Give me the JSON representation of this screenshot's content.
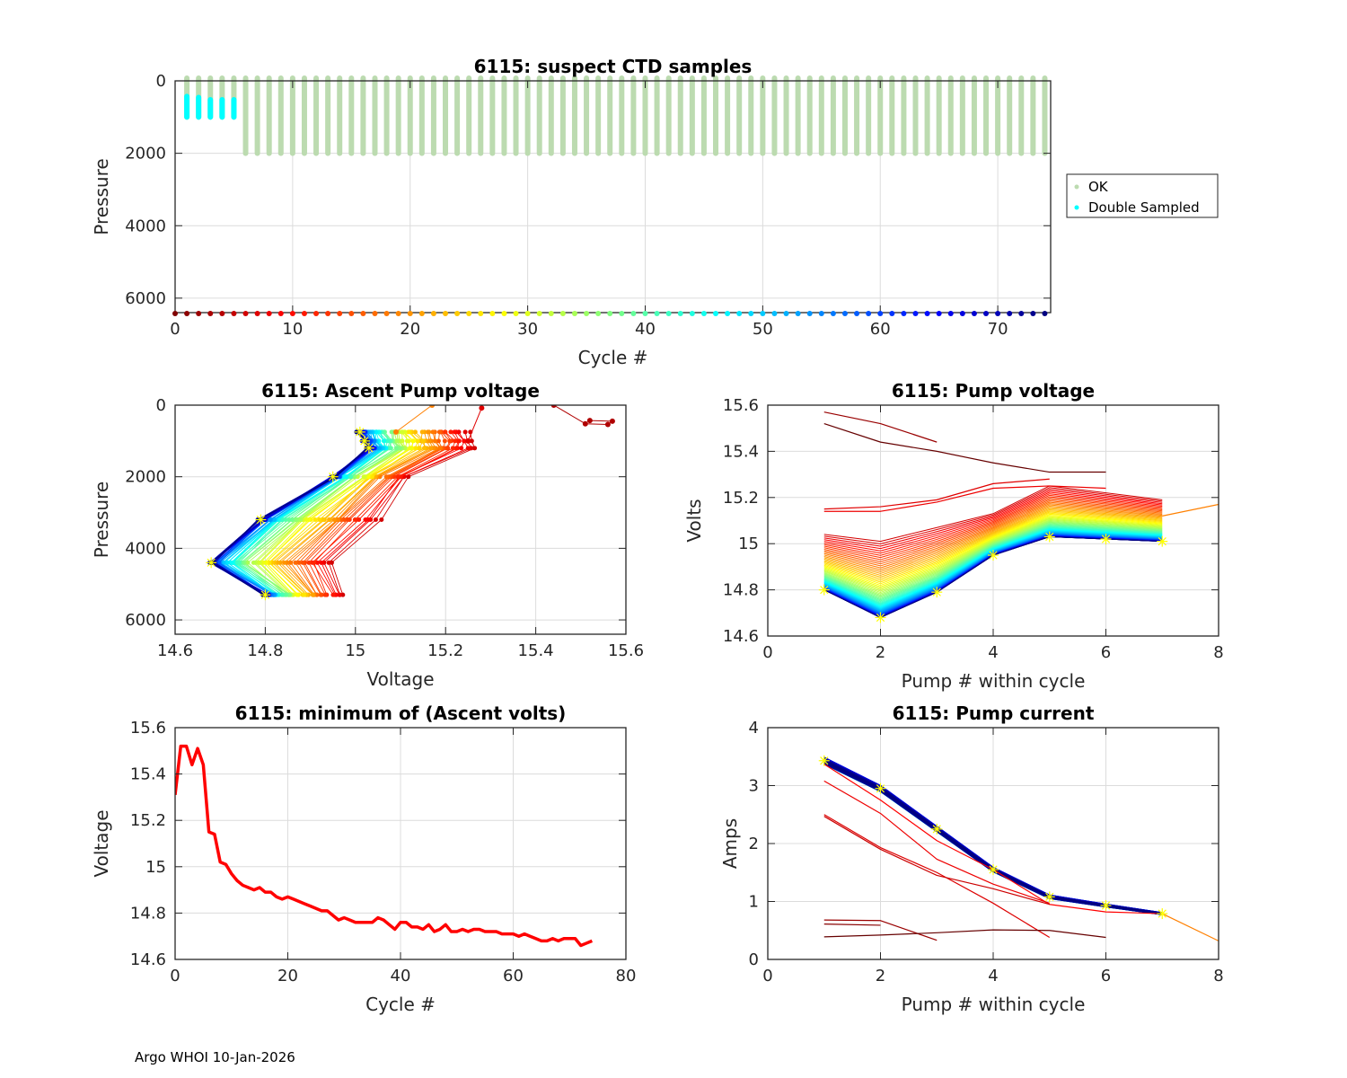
{
  "figure": {
    "footer": "Argo WHOI 10-Jan-2026",
    "float_id": "6115"
  },
  "chart_data": [
    {
      "id": "suspect-ctd",
      "type": "scatter",
      "title": "6115: suspect CTD samples",
      "xlabel": "Cycle #",
      "ylabel": "Pressure",
      "xlim": [
        0,
        74.5
      ],
      "ylim": [
        0,
        6400
      ],
      "y_reversed": true,
      "xticks": [
        0,
        10,
        20,
        30,
        40,
        50,
        60,
        70
      ],
      "yticks": [
        0,
        2000,
        4000,
        6000
      ],
      "grid": true,
      "legend": {
        "placement": "outside-right",
        "entries": [
          {
            "label": "OK",
            "color": "#bcdbb0"
          },
          {
            "label": "Double Sampled",
            "color": "#00ffff"
          }
        ]
      },
      "ok_profiles": {
        "cycles_shallow": [
          1,
          2,
          3,
          4,
          5
        ],
        "shallow_pressure_range": [
          0,
          1000
        ],
        "cycles_deep_first": 6,
        "cycles_deep_last": 74,
        "deep_pressure_range": [
          0,
          2000
        ]
      },
      "double_sampled": [
        {
          "cycle": 1,
          "pressure_range": [
            430,
            1000
          ]
        },
        {
          "cycle": 2,
          "pressure_range": [
            460,
            1000
          ]
        },
        {
          "cycle": 3,
          "pressure_range": [
            520,
            1000
          ]
        },
        {
          "cycle": 4,
          "pressure_range": [
            520,
            1000
          ]
        },
        {
          "cycle": 5,
          "pressure_range": [
            520,
            1000
          ]
        }
      ],
      "cycle_markers": {
        "first": 0,
        "last": 74,
        "pressure": 6350,
        "colormap": "jet"
      }
    },
    {
      "id": "ascent-pump-voltage",
      "type": "line",
      "title": "6115: Ascent Pump voltage",
      "xlabel": "Voltage",
      "ylabel": "Pressure",
      "xlim": [
        14.6,
        15.6
      ],
      "ylim": [
        0,
        6400
      ],
      "y_reversed": true,
      "xticks": [
        14.6,
        14.8,
        15,
        15.2,
        15.4,
        15.6
      ],
      "yticks": [
        0,
        2000,
        4000,
        6000
      ],
      "grid": true,
      "colormap": "jet by cycle",
      "pump_pressures": [
        750,
        1000,
        1200,
        2000,
        3200,
        4400,
        5300
      ],
      "early_cycle_volts": [
        15.25,
        15.26,
        15.26,
        15.12,
        15.05,
        14.95,
        14.97
      ],
      "late_cycle_volts": [
        15.01,
        15.02,
        15.03,
        14.95,
        14.79,
        14.68,
        14.8
      ],
      "outliers": [
        {
          "points": [
            [
              15.17,
              0
            ],
            [
              15.09,
              750
            ]
          ],
          "color": "#ff8000"
        },
        {
          "points": [
            [
              15.28,
              80
            ],
            [
              15.25,
              1000
            ]
          ],
          "color": "#e00000"
        },
        {
          "points": [
            [
              15.44,
              0
            ],
            [
              15.51,
              520
            ],
            [
              15.56,
              540
            ],
            [
              15.57,
              450
            ],
            [
              15.52,
              430
            ]
          ],
          "color": "#b00000"
        }
      ],
      "highlight_marker": "yellow asterisk on last cycle"
    },
    {
      "id": "pump-voltage",
      "type": "line",
      "title": "6115: Pump voltage",
      "xlabel": "Pump # within cycle",
      "ylabel": "Volts",
      "xlim": [
        0,
        8
      ],
      "ylim": [
        14.6,
        15.6
      ],
      "xticks": [
        0,
        2,
        4,
        6,
        8
      ],
      "yticks": [
        14.6,
        14.8,
        15,
        15.2,
        15.4,
        15.6
      ],
      "grid": true,
      "colormap": "jet by cycle",
      "pump_numbers": [
        1,
        2,
        3,
        4,
        5,
        6,
        7
      ],
      "early_cycle_volts": [
        15.04,
        15.01,
        15.07,
        15.13,
        15.25,
        15.22,
        15.19
      ],
      "late_cycle_volts": [
        14.8,
        14.68,
        14.79,
        14.95,
        15.03,
        15.02,
        15.01
      ],
      "outliers": [
        {
          "points": [
            [
              1,
              15.57
            ],
            [
              2,
              15.52
            ],
            [
              3,
              15.44
            ]
          ],
          "color": "#990000"
        },
        {
          "points": [
            [
              1,
              15.52
            ],
            [
              2,
              15.44
            ],
            [
              3,
              15.4
            ],
            [
              4,
              15.35
            ],
            [
              5,
              15.31
            ],
            [
              6,
              15.31
            ]
          ],
          "color": "#660000"
        },
        {
          "points": [
            [
              1,
              15.15
            ],
            [
              2,
              15.16
            ],
            [
              3,
              15.19
            ],
            [
              4,
              15.26
            ],
            [
              5,
              15.28
            ]
          ],
          "color": "#e00000"
        },
        {
          "points": [
            [
              1,
              15.14
            ],
            [
              2,
              15.14
            ],
            [
              3,
              15.18
            ],
            [
              4,
              15.24
            ],
            [
              5,
              15.25
            ],
            [
              6,
              15.24
            ]
          ],
          "color": "#ee0000"
        },
        {
          "points": [
            [
              7,
              15.12
            ],
            [
              8,
              15.17
            ]
          ],
          "color": "#ff8000"
        }
      ]
    },
    {
      "id": "min-ascent-volts",
      "type": "line",
      "title": "6115: minimum of (Ascent volts)",
      "xlabel": "Cycle #",
      "ylabel": "Voltage",
      "xlim": [
        0,
        80
      ],
      "ylim": [
        14.6,
        15.6
      ],
      "xticks": [
        0,
        20,
        40,
        60,
        80
      ],
      "yticks": [
        14.6,
        14.8,
        15,
        15.2,
        15.4,
        15.6
      ],
      "grid": true,
      "color": "#ff0000",
      "x": [
        0,
        1,
        2,
        3,
        4,
        5,
        6,
        7,
        8,
        9,
        10,
        11,
        12,
        13,
        14,
        15,
        16,
        17,
        18,
        19,
        20,
        21,
        22,
        23,
        24,
        25,
        26,
        27,
        28,
        29,
        30,
        31,
        32,
        33,
        34,
        35,
        36,
        37,
        38,
        39,
        40,
        41,
        42,
        43,
        44,
        45,
        46,
        47,
        48,
        49,
        50,
        51,
        52,
        53,
        54,
        55,
        56,
        57,
        58,
        59,
        60,
        61,
        62,
        63,
        64,
        65,
        66,
        67,
        68,
        69,
        70,
        71,
        72,
        73,
        74
      ],
      "y": [
        15.31,
        15.52,
        15.52,
        15.44,
        15.51,
        15.44,
        15.15,
        15.14,
        15.02,
        15.01,
        14.97,
        14.94,
        14.92,
        14.91,
        14.9,
        14.91,
        14.89,
        14.89,
        14.87,
        14.86,
        14.87,
        14.86,
        14.85,
        14.84,
        14.83,
        14.82,
        14.81,
        14.81,
        14.79,
        14.77,
        14.78,
        14.77,
        14.76,
        14.76,
        14.76,
        14.76,
        14.78,
        14.77,
        14.75,
        14.73,
        14.76,
        14.76,
        14.74,
        14.74,
        14.73,
        14.75,
        14.72,
        14.73,
        14.75,
        14.72,
        14.72,
        14.73,
        14.72,
        14.73,
        14.73,
        14.72,
        14.72,
        14.72,
        14.71,
        14.71,
        14.71,
        14.7,
        14.71,
        14.7,
        14.69,
        14.68,
        14.68,
        14.69,
        14.68,
        14.69,
        14.69,
        14.69,
        14.66,
        14.67,
        14.68
      ]
    },
    {
      "id": "pump-current",
      "type": "line",
      "title": "6115: Pump current",
      "xlabel": "Pump # within cycle",
      "ylabel": "Amps",
      "xlim": [
        0,
        8
      ],
      "ylim": [
        0,
        4
      ],
      "xticks": [
        0,
        2,
        4,
        6,
        8
      ],
      "yticks": [
        0,
        1,
        2,
        3,
        4
      ],
      "grid": true,
      "colormap": "jet by cycle",
      "pump_numbers": [
        1,
        2,
        3,
        4,
        5,
        6,
        7
      ],
      "typical_amps": [
        3.43,
        2.95,
        2.25,
        1.55,
        1.08,
        0.93,
        0.79
      ],
      "outliers": [
        {
          "points": [
            [
              1,
              3.37
            ],
            [
              2,
              2.75
            ],
            [
              3,
              2.05
            ],
            [
              4,
              1.55
            ],
            [
              5,
              0.95
            ],
            [
              6,
              0.82
            ],
            [
              7,
              0.79
            ]
          ],
          "color": "#ff0000"
        },
        {
          "points": [
            [
              1,
              3.08
            ],
            [
              2,
              2.52
            ],
            [
              3,
              1.73
            ],
            [
              4,
              1.3
            ],
            [
              5,
              0.97
            ]
          ],
          "color": "#ee0000"
        },
        {
          "points": [
            [
              1,
              2.5
            ],
            [
              2,
              1.93
            ],
            [
              3,
              1.5
            ],
            [
              4,
              0.97
            ],
            [
              5,
              0.38
            ]
          ],
          "color": "#dd0000"
        },
        {
          "points": [
            [
              1,
              2.47
            ],
            [
              2,
              1.9
            ],
            [
              3,
              1.45
            ],
            [
              4,
              1.22
            ],
            [
              5,
              0.95
            ]
          ],
          "color": "#cc0000"
        },
        {
          "points": [
            [
              1,
              0.68
            ],
            [
              2,
              0.67
            ],
            [
              3,
              0.33
            ]
          ],
          "color": "#990000"
        },
        {
          "points": [
            [
              1,
              0.61
            ],
            [
              2,
              0.59
            ]
          ],
          "color": "#880000"
        },
        {
          "points": [
            [
              1,
              0.39
            ],
            [
              2,
              0.42
            ],
            [
              3,
              0.46
            ],
            [
              4,
              0.51
            ],
            [
              5,
              0.5
            ],
            [
              6,
              0.38
            ]
          ],
          "color": "#660000"
        },
        {
          "points": [
            [
              7,
              0.79
            ],
            [
              8,
              0.32
            ]
          ],
          "color": "#ff8000"
        }
      ]
    }
  ]
}
